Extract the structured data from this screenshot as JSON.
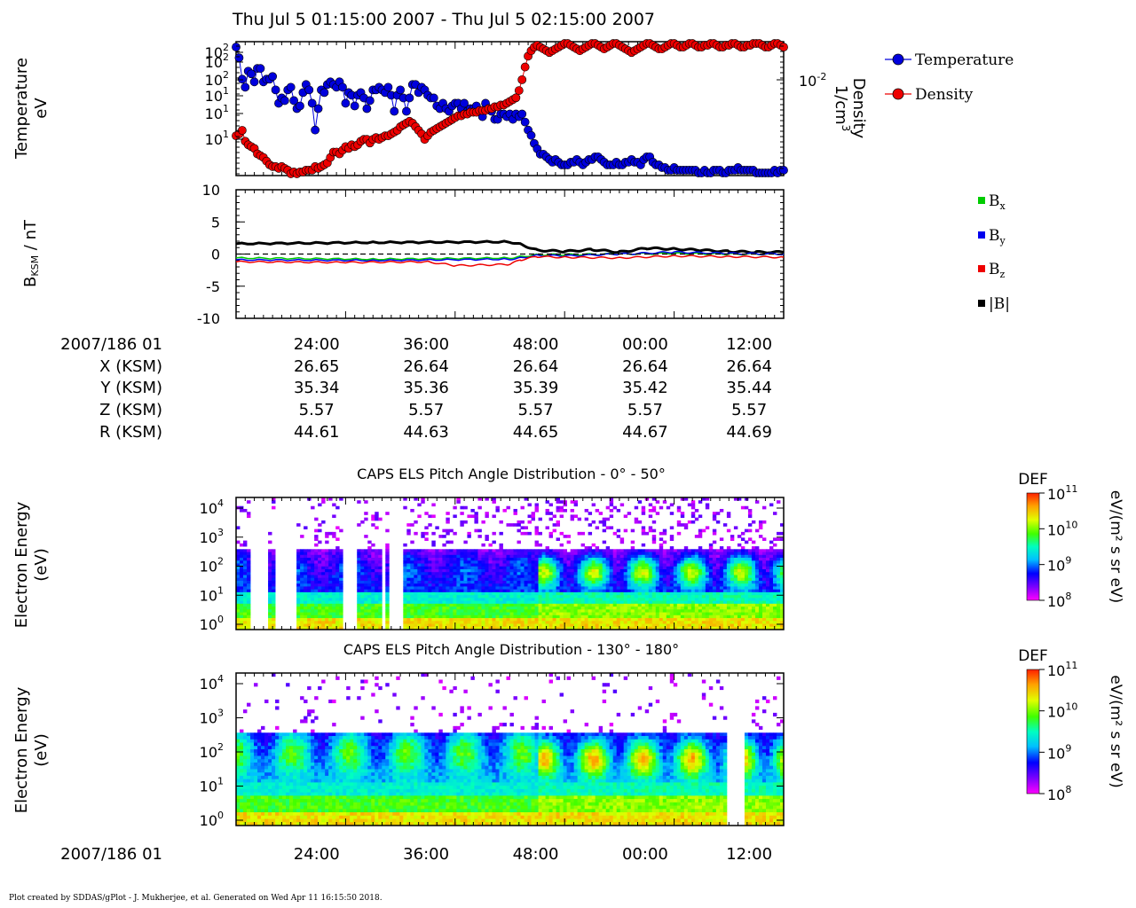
{
  "page_title": "Thu Jul 5 01:15:00 2007 - Thu Jul 5 02:15:00 2007",
  "footer": "Plot created by SDDAS/gPlot - J. Mukherjee, et al.  Generated on Wed Apr 11 16:15:50 2018.",
  "colors": {
    "temperature": "#0000dd",
    "density": "#ee0000",
    "bx": "#00cc00",
    "by": "#0000ee",
    "bz": "#ee0000",
    "btot": "#000000"
  },
  "ephemeris": {
    "row_labels": [
      "2007/186 01",
      "X (KSM)",
      "Y (KSM)",
      "Z (KSM)",
      "R (KSM)"
    ],
    "ticks": [
      "24:00",
      "36:00",
      "48:00",
      "00:00",
      "12:00"
    ],
    "rows": [
      [
        "26.65",
        "26.64",
        "26.64",
        "26.64",
        "26.64"
      ],
      [
        "35.34",
        "35.36",
        "35.39",
        "35.42",
        "35.44"
      ],
      [
        "5.57",
        "5.57",
        "5.57",
        "5.57",
        "5.57"
      ],
      [
        "44.61",
        "44.63",
        "44.65",
        "44.67",
        "44.69"
      ]
    ]
  },
  "bottom_axis": {
    "label": "2007/186 01",
    "ticks": [
      "24:00",
      "36:00",
      "48:00",
      "00:00",
      "12:00"
    ]
  },
  "chart_data": [
    {
      "type": "scatter",
      "panel": "plasma moments",
      "ylabel": "Temperature",
      "yunit": "eV",
      "y2label": "Density",
      "y2unit": "1/cm",
      "y2unit_sup": "3",
      "y2_tick": "10",
      "y2_tick_sup": "-2",
      "y_ticks": [
        {
          "base": "10",
          "sup": "2"
        },
        {
          "base": "10",
          "sup": "2"
        },
        {
          "base": "10",
          "sup": "2"
        },
        {
          "base": "10",
          "sup": "1"
        },
        {
          "base": "10",
          "sup": "1"
        },
        {
          "base": "10",
          "sup": "1"
        }
      ],
      "series": [
        {
          "name": "Temperature",
          "color": "#0000dd",
          "values": [
            3.8,
            3.4,
            2.6,
            2.3,
            2.9,
            2.8,
            2.5,
            3.0,
            3.0,
            2.5,
            2.6,
            2.6,
            2.7,
            2.2,
            1.7,
            1.9,
            1.8,
            2.2,
            2.3,
            1.8,
            1.5,
            1.6,
            2.1,
            2.4,
            2.2,
            1.7,
            0.7,
            1.5,
            2.2,
            2.1,
            2.4,
            2.5,
            2.4,
            2.3,
            2.5,
            2.3,
            1.7,
            2.1,
            2.0,
            1.6,
            2.0,
            2.1,
            1.9,
            1.5,
            1.8,
            2.2,
            2.2,
            2.3,
            2.2,
            2.1,
            2.3,
            2.0,
            1.4,
            2.0,
            2.2,
            1.9,
            1.4,
            1.9,
            2.4,
            2.4,
            2.1,
            2.3,
            2.2,
            2.0,
            1.9,
            1.9,
            1.6,
            1.5,
            1.7,
            1.5,
            1.4,
            1.6,
            1.7,
            1.7,
            1.5,
            1.7,
            1.4,
            1.5,
            1.5,
            1.6,
            1.4,
            1.2,
            1.7,
            1.5,
            1.4,
            1.1,
            1.1,
            1.3,
            1.3,
            1.2,
            1.3,
            1.1,
            1.3,
            1.2,
            1.3,
            1.0,
            0.7,
            0.5,
            0.2,
            0.0,
            -0.2,
            -0.2,
            -0.3,
            -0.4,
            -0.5,
            -0.4,
            -0.5,
            -0.6,
            -0.6,
            -0.6,
            -0.5,
            -0.5,
            -0.4,
            -0.5,
            -0.6,
            -0.5,
            -0.4,
            -0.4,
            -0.3,
            -0.3,
            -0.4,
            -0.5,
            -0.6,
            -0.6,
            -0.6,
            -0.5,
            -0.6,
            -0.6,
            -0.5,
            -0.5,
            -0.4,
            -0.5,
            -0.5,
            -0.6,
            -0.4,
            -0.3,
            -0.3,
            -0.5,
            -0.6,
            -0.6,
            -0.7,
            -0.7,
            -0.8,
            -0.8,
            -0.7,
            -0.8,
            -0.8,
            -0.8,
            -0.8,
            -0.8,
            -0.8,
            -0.8,
            -0.9,
            -0.9,
            -0.8,
            -0.9,
            -0.9,
            -0.8,
            -0.8,
            -0.8,
            -0.9,
            -0.9,
            -0.8,
            -0.8,
            -0.8,
            -0.7,
            -0.8,
            -0.8,
            -0.8,
            -0.8,
            -0.8,
            -0.9,
            -0.9,
            -0.9,
            -0.9,
            -0.9,
            -0.9,
            -0.8,
            -0.9,
            -0.8,
            -0.8
          ]
        },
        {
          "name": "Density",
          "color": "#ee0000",
          "values": [
            1.5,
            1.6,
            1.8,
            1.2,
            1.0,
            0.9,
            0.8,
            0.5,
            0.4,
            0.3,
            0.1,
            -0.1,
            -0.2,
            -0.2,
            -0.3,
            -0.2,
            -0.3,
            -0.4,
            -0.6,
            -0.5,
            -0.6,
            -0.5,
            -0.5,
            -0.4,
            -0.4,
            -0.4,
            -0.2,
            -0.3,
            -0.2,
            -0.1,
            0.0,
            0.3,
            0.6,
            0.6,
            0.5,
            0.7,
            0.9,
            0.8,
            1.0,
            0.9,
            1.0,
            1.2,
            1.3,
            1.3,
            1.1,
            1.3,
            1.4,
            1.3,
            1.4,
            1.5,
            1.5,
            1.6,
            1.7,
            1.8,
            2.0,
            2.1,
            2.2,
            2.3,
            2.2,
            2.0,
            1.8,
            1.6,
            1.3,
            1.5,
            1.7,
            1.8,
            1.9,
            2.0,
            2.1,
            2.2,
            2.3,
            2.4,
            2.5,
            2.6,
            2.6,
            2.7,
            2.7,
            2.8,
            2.8,
            2.8,
            2.9,
            2.9,
            2.9,
            3.0,
            3.0,
            3.1,
            3.1,
            3.2,
            3.2,
            3.3,
            3.4,
            3.5,
            3.6,
            4.0,
            4.6,
            5.3,
            5.9,
            6.2,
            6.4,
            6.5,
            6.4,
            6.3,
            6.2,
            6.1,
            6.2,
            6.3,
            6.4,
            6.5,
            6.6,
            6.6,
            6.5,
            6.4,
            6.3,
            6.2,
            6.3,
            6.4,
            6.5,
            6.6,
            6.6,
            6.5,
            6.4,
            6.3,
            6.4,
            6.5,
            6.6,
            6.6,
            6.5,
            6.4,
            6.3,
            6.2,
            6.1,
            6.2,
            6.3,
            6.4,
            6.5,
            6.6,
            6.6,
            6.5,
            6.4,
            6.3,
            6.3,
            6.4,
            6.5,
            6.6,
            6.6,
            6.5,
            6.4,
            6.4,
            6.5,
            6.6,
            6.6,
            6.5,
            6.4,
            6.4,
            6.5,
            6.5,
            6.6,
            6.6,
            6.5,
            6.4,
            6.4,
            6.5,
            6.5,
            6.6,
            6.6,
            6.5,
            6.4,
            6.4,
            6.5,
            6.5,
            6.6,
            6.6,
            6.6,
            6.5,
            6.4,
            6.4,
            6.5,
            6.6,
            6.6,
            6.5,
            6.4
          ]
        }
      ]
    },
    {
      "type": "line",
      "panel": "magnetic field",
      "ylabel": "B",
      "ylabel_sub": "KSM",
      "ylabel_unit": " / nT",
      "ylim": [
        -10,
        10
      ],
      "y_ticks": [
        "10",
        "5",
        "0",
        "-5",
        "-10"
      ],
      "legend": [
        {
          "name": "B",
          "sub": "x",
          "color": "#00cc00"
        },
        {
          "name": "B",
          "sub": "y",
          "color": "#0000ee"
        },
        {
          "name": "B",
          "sub": "z",
          "color": "#ee0000"
        },
        {
          "name": "|B|",
          "sub": "",
          "color": "#000000"
        }
      ],
      "series": [
        {
          "name": "|B|",
          "color": "#000000",
          "x": [
            0,
            0.25,
            0.5,
            0.52,
            0.55,
            0.6,
            0.65,
            0.7,
            0.75,
            0.8,
            0.85,
            0.9,
            0.95,
            1
          ],
          "values": [
            1.6,
            1.8,
            1.9,
            1.5,
            0.6,
            0.4,
            0.7,
            0.3,
            0.9,
            0.8,
            0.6,
            0.4,
            0.3,
            0.3
          ]
        },
        {
          "name": "Bx",
          "color": "#00cc00",
          "x": [
            0,
            0.25,
            0.5,
            0.52,
            0.55,
            0.6,
            0.7,
            0.8,
            0.9,
            1
          ],
          "values": [
            -0.6,
            -0.8,
            -0.6,
            -0.4,
            -0.1,
            -0.1,
            0.0,
            0.1,
            0.0,
            0.0
          ]
        },
        {
          "name": "By",
          "color": "#0000ee",
          "x": [
            0,
            0.25,
            0.5,
            0.52,
            0.55,
            0.6,
            0.7,
            0.8,
            0.9,
            1
          ],
          "values": [
            -0.9,
            -1.0,
            -0.8,
            -0.6,
            -0.2,
            -0.3,
            0.0,
            0.3,
            0.1,
            0.0
          ]
        },
        {
          "name": "Bz",
          "color": "#ee0000",
          "x": [
            0,
            0.2,
            0.35,
            0.4,
            0.5,
            0.52,
            0.55,
            0.6,
            0.7,
            0.8,
            0.9,
            1
          ],
          "values": [
            -1.2,
            -1.3,
            -1.2,
            -1.8,
            -1.6,
            -0.9,
            -0.4,
            -0.5,
            -0.6,
            -0.3,
            -0.4,
            -0.5
          ]
        },
        {
          "name": "zero",
          "color": "#000000",
          "dashed": true,
          "x": [
            0,
            1
          ],
          "values": [
            0,
            0
          ]
        }
      ]
    },
    {
      "type": "heatmap",
      "title": "CAPS ELS Pitch Angle Distribution - 0° - 50°",
      "ylabel": "Electron Energy",
      "yunit": "(eV)",
      "y_ticks": [
        {
          "base": "10",
          "sup": "4"
        },
        {
          "base": "10",
          "sup": "3"
        },
        {
          "base": "10",
          "sup": "2"
        },
        {
          "base": "10",
          "sup": "1"
        },
        {
          "base": "10",
          "sup": "0"
        }
      ],
      "colorbar": {
        "title": "DEF",
        "unit": "eV/(m² s sr eV)",
        "ticks": [
          {
            "base": "10",
            "sup": "11"
          },
          {
            "base": "10",
            "sup": "10"
          },
          {
            "base": "10",
            "sup": "9"
          },
          {
            "base": "10",
            "sup": "8"
          }
        ]
      }
    },
    {
      "type": "heatmap",
      "title": "CAPS ELS Pitch Angle Distribution - 130° - 180°",
      "ylabel": "Electron Energy",
      "yunit": "(eV)",
      "y_ticks": [
        {
          "base": "10",
          "sup": "4"
        },
        {
          "base": "10",
          "sup": "3"
        },
        {
          "base": "10",
          "sup": "2"
        },
        {
          "base": "10",
          "sup": "1"
        },
        {
          "base": "10",
          "sup": "0"
        }
      ],
      "colorbar": {
        "title": "DEF",
        "unit": "eV/(m² s sr eV)",
        "ticks": [
          {
            "base": "10",
            "sup": "11"
          },
          {
            "base": "10",
            "sup": "10"
          },
          {
            "base": "10",
            "sup": "9"
          },
          {
            "base": "10",
            "sup": "8"
          }
        ]
      }
    }
  ]
}
